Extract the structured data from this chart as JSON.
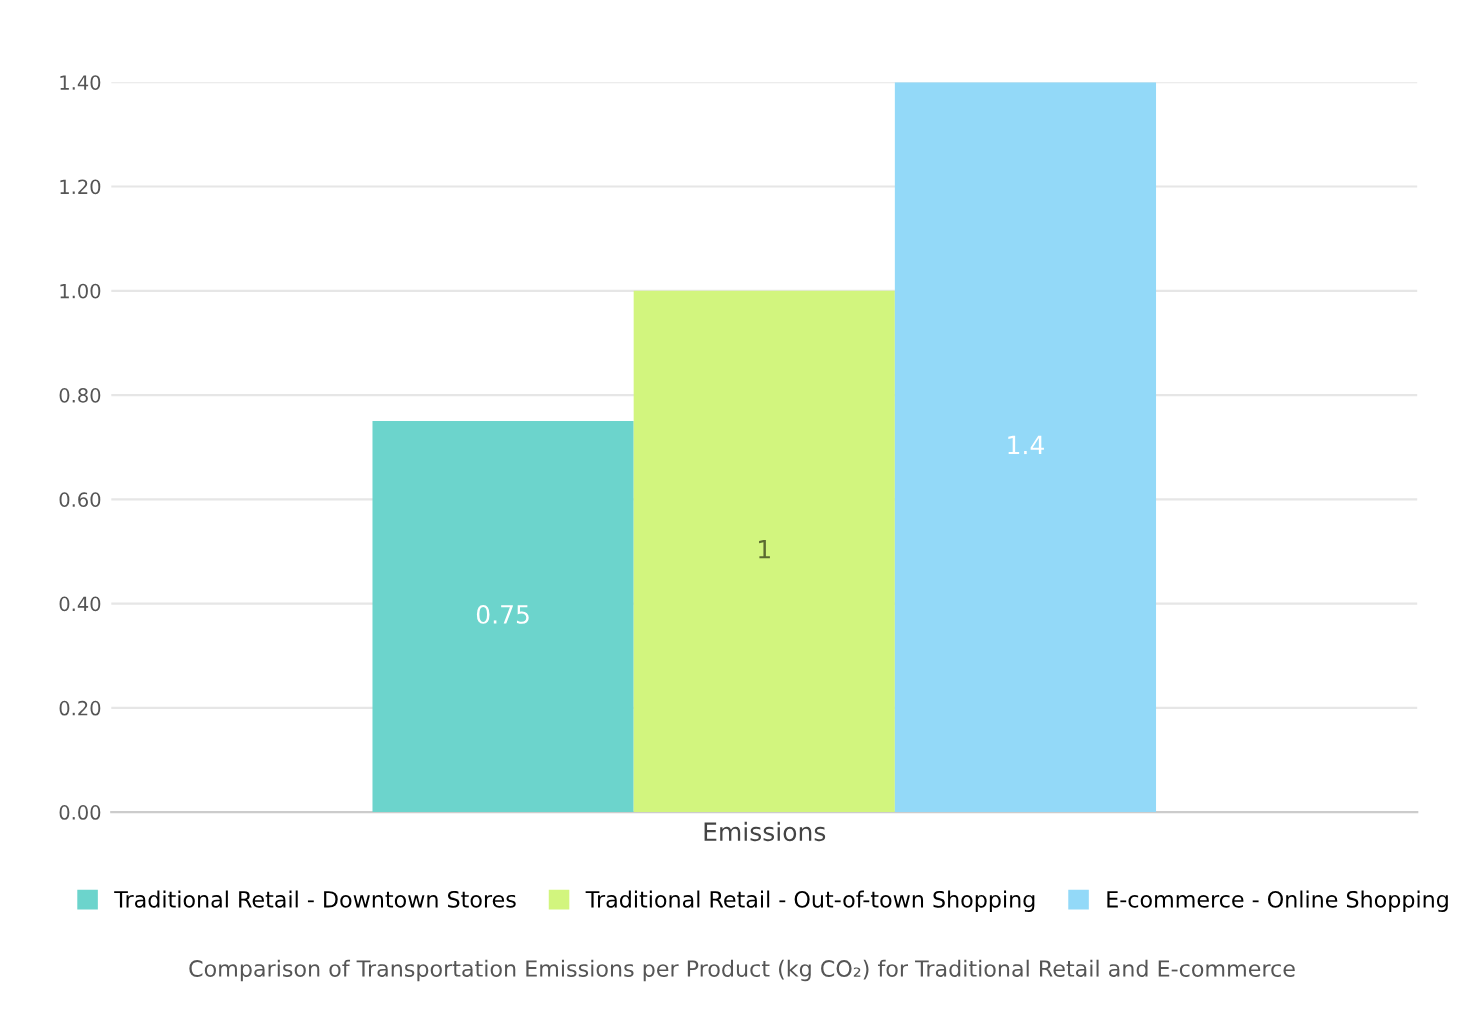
{
  "chart_data": {
    "type": "bar",
    "title": "Comparison of Transportation Emissions per Product (kg CO₂) for Traditional Retail and E-commerce",
    "categories": [
      "Emissions"
    ],
    "series": [
      {
        "name": "Traditional Retail - Downtown Stores",
        "color": "#6cd4cc",
        "values": [
          0.75
        ],
        "value_labels": [
          "0.75"
        ]
      },
      {
        "name": "Traditional Retail - Out-of-town Shopping",
        "color": "#d2f57e",
        "values": [
          1.0
        ],
        "value_labels": [
          "1"
        ]
      },
      {
        "name": "E-commerce - Online Shopping",
        "color": "#93d9f8",
        "values": [
          1.4
        ],
        "value_labels": [
          "1.4"
        ]
      }
    ],
    "ylim": [
      0,
      1.4
    ],
    "yticks": [
      {
        "value": 0,
        "label": "0.00"
      },
      {
        "value": 0.2,
        "label": "0.20"
      },
      {
        "value": 0.4,
        "label": "0.40"
      },
      {
        "value": 0.6,
        "label": "0.60"
      },
      {
        "value": 0.8,
        "label": "0.80"
      },
      {
        "value": 1.0,
        "label": "1.00"
      },
      {
        "value": 1.2,
        "label": "1.20"
      },
      {
        "value": 1.4,
        "label": "1.40"
      }
    ],
    "grid": "y",
    "legend": "bottom"
  }
}
